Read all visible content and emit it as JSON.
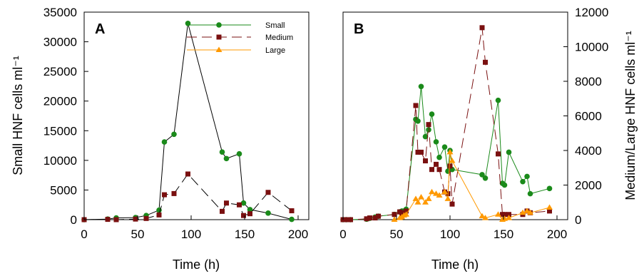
{
  "chart_data": [
    {
      "type": "line",
      "panel_label": "A",
      "xlabel": "Time (h)",
      "ylabel": "Small HNF cells ml⁻¹",
      "xlim": [
        0,
        210
      ],
      "ylim": [
        0,
        35000
      ],
      "x_ticks": [
        0,
        50,
        100,
        150,
        200
      ],
      "y_ticks": [
        0,
        5000,
        10000,
        15000,
        20000,
        25000,
        30000,
        35000
      ],
      "legend": [
        {
          "name": "Small",
          "color": "#1a8a1a",
          "marker": "circle",
          "dash": "solid"
        },
        {
          "name": "Medium",
          "color": "#7a1010",
          "marker": "square",
          "dash": "long-dash"
        },
        {
          "name": "Large",
          "color": "#ff9900",
          "marker": "triangle",
          "dash": "solid"
        }
      ],
      "series": [
        {
          "name": "Small",
          "color": "#1a8a1a",
          "line_color": "#000000",
          "marker": "circle",
          "dash": "solid",
          "axis": "left",
          "x": [
            0,
            22,
            30,
            48,
            58,
            70,
            75,
            84,
            97,
            129,
            133,
            145,
            149,
            155,
            172,
            194
          ],
          "y": [
            0,
            100,
            300,
            350,
            700,
            1600,
            13100,
            14400,
            33100,
            11400,
            10300,
            11100,
            2800,
            1700,
            1100,
            50
          ]
        },
        {
          "name": "Medium",
          "color": "#7a1010",
          "line_color": "#000000",
          "marker": "square",
          "dash": "long-dash",
          "axis": "left",
          "x": [
            0,
            22,
            30,
            48,
            58,
            70,
            75,
            84,
            97,
            129,
            133,
            145,
            149,
            155,
            172,
            194
          ],
          "y": [
            0,
            50,
            0,
            100,
            200,
            800,
            4200,
            4400,
            7700,
            1400,
            2800,
            2500,
            700,
            1000,
            4600,
            1500
          ]
        }
      ]
    },
    {
      "type": "line",
      "panel_label": "B",
      "xlabel": "Time (h)",
      "ylabel": "Medium/Large HNF cells ml⁻¹",
      "xlim": [
        0,
        210
      ],
      "ylim": [
        0,
        12000
      ],
      "x_ticks": [
        0,
        50,
        100,
        150,
        200
      ],
      "y_ticks": [
        0,
        2000,
        4000,
        6000,
        8000,
        10000,
        12000
      ],
      "series": [
        {
          "name": "Small",
          "color": "#1a8a1a",
          "line_color": "#1a8a1a",
          "marker": "circle",
          "dash": "solid",
          "axis": "right",
          "x": [
            0,
            3,
            7,
            22,
            25,
            30,
            33,
            48,
            53,
            55,
            57,
            59,
            68,
            70,
            73,
            77,
            80,
            83,
            87,
            90,
            95,
            98,
            100,
            102,
            130,
            133,
            145,
            149,
            151,
            155,
            168,
            172,
            175,
            193
          ],
          "y": [
            0,
            0,
            0,
            30,
            80,
            150,
            200,
            300,
            450,
            500,
            500,
            600,
            5800,
            5700,
            7700,
            4800,
            5200,
            6100,
            4500,
            3600,
            4200,
            2800,
            4000,
            2900,
            2600,
            2400,
            6900,
            2100,
            2000,
            3900,
            2200,
            2500,
            1500,
            1800
          ]
        },
        {
          "name": "Medium",
          "color": "#7a1010",
          "line_color": "#7a1010",
          "marker": "square",
          "dash": "long-dash",
          "axis": "right",
          "x": [
            0,
            3,
            7,
            22,
            25,
            30,
            33,
            48,
            53,
            55,
            57,
            59,
            68,
            70,
            73,
            77,
            80,
            83,
            87,
            90,
            95,
            98,
            100,
            102,
            130,
            133,
            145,
            149,
            151,
            155,
            168,
            172,
            175,
            193
          ],
          "y": [
            0,
            0,
            0,
            50,
            100,
            100,
            200,
            300,
            450,
            200,
            400,
            500,
            6600,
            3900,
            3900,
            3400,
            5500,
            2900,
            3200,
            2900,
            1600,
            1500,
            3100,
            900,
            11100,
            9100,
            3800,
            300,
            300,
            300,
            300,
            500,
            400,
            500
          ]
        },
        {
          "name": "Large",
          "color": "#ff9900",
          "line_color": "#ff9900",
          "marker": "triangle",
          "dash": "solid",
          "axis": "right",
          "x": [
            48,
            53,
            55,
            57,
            59,
            68,
            70,
            73,
            77,
            80,
            83,
            87,
            90,
            95,
            98,
            100,
            102,
            130,
            133,
            145,
            149,
            151,
            155,
            168,
            172,
            175,
            193
          ],
          "y": [
            0,
            100,
            150,
            250,
            300,
            1200,
            1000,
            1300,
            1000,
            1200,
            1600,
            1500,
            1400,
            1600,
            1200,
            3900,
            3400,
            200,
            100,
            300,
            0,
            50,
            100,
            400,
            500,
            400,
            700
          ]
        }
      ]
    }
  ]
}
